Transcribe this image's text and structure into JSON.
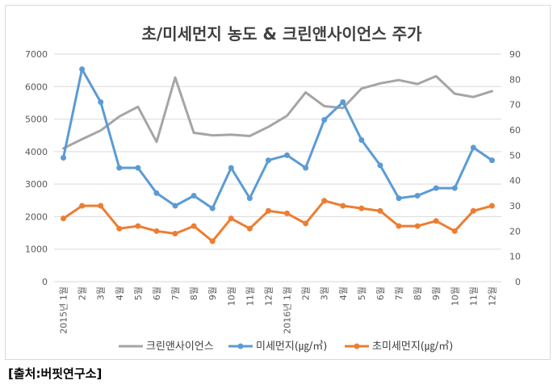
{
  "chart_data": {
    "type": "line",
    "title": "초/미세먼지 농도 & 크린앤사이언스 주가",
    "categories": [
      "2015년 1월",
      "2월",
      "3월",
      "4월",
      "5월",
      "6월",
      "7월",
      "8월",
      "9월",
      "10월",
      "11월",
      "12월",
      "2016년 1월",
      "2월",
      "3월",
      "4월",
      "5월",
      "6월",
      "7월",
      "8월",
      "9월",
      "10월",
      "11월",
      "12월"
    ],
    "y_left": {
      "lim": [
        0,
        7000
      ],
      "ticks": [
        "0",
        "1000",
        "2000",
        "3000",
        "4000",
        "5000",
        "6000",
        "7000"
      ]
    },
    "y_right": {
      "lim": [
        0,
        90
      ],
      "ticks": [
        "0",
        "10",
        "20",
        "30",
        "40",
        "50",
        "60",
        "70",
        "80",
        "90"
      ]
    },
    "grid": true,
    "legend_position": "bottom",
    "series": [
      {
        "name": "크린앤사이언스",
        "axis": "left",
        "color": "#a5a5a5",
        "marker": false,
        "values": [
          4100,
          4380,
          4650,
          5080,
          5380,
          4300,
          6280,
          4580,
          4500,
          4520,
          4480,
          4760,
          5100,
          5820,
          5400,
          5340,
          5940,
          6100,
          6200,
          6080,
          6320,
          5780,
          5680,
          5860
        ]
      },
      {
        "name": "미세먼지(㎍/㎥)",
        "axis": "right",
        "color": "#5b9bd5",
        "marker": true,
        "values": [
          49,
          84,
          71,
          45,
          45,
          35,
          30,
          34,
          29,
          45,
          33,
          48,
          50,
          45,
          64,
          71,
          56,
          46,
          33,
          34,
          37,
          37,
          53,
          48
        ]
      },
      {
        "name": "초미세먼지(㎍/㎥)",
        "axis": "right",
        "color": "#ed7d31",
        "marker": true,
        "values": [
          25,
          30,
          30,
          21,
          22,
          20,
          19,
          22,
          16,
          25,
          21,
          28,
          27,
          23,
          32,
          30,
          29,
          28,
          22,
          22,
          24,
          20,
          28,
          30
        ]
      }
    ]
  },
  "source": "[출처:버핏연구소]"
}
